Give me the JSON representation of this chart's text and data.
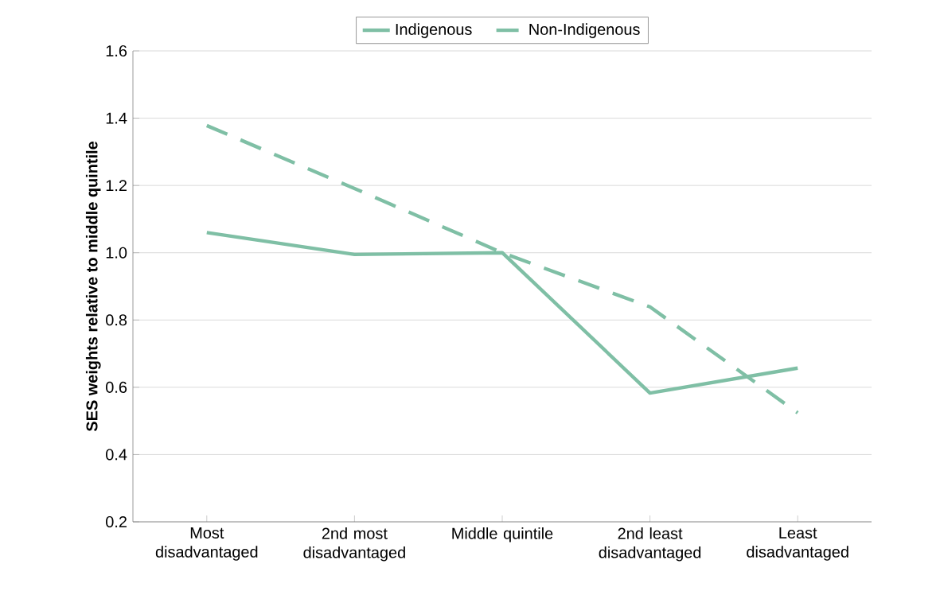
{
  "chart_data": {
    "type": "line",
    "ylabel": "SES weights relative to middle quintile",
    "categories": [
      "Most disadvantaged",
      "2nd most disadvantaged",
      "Middle quintile",
      "2nd least disadvantaged",
      "Least disadvantaged"
    ],
    "series": [
      {
        "name": "Indigenous",
        "color": "#7fbfa5",
        "line_style": "solid",
        "values": [
          1.06,
          0.995,
          1.0,
          0.583,
          0.657
        ]
      },
      {
        "name": "Non-Indigenous",
        "color": "#7fbfa5",
        "line_style": "dashed",
        "values": [
          1.378,
          1.191,
          1.0,
          0.839,
          0.524
        ]
      }
    ],
    "ylim": [
      0.2,
      1.6
    ],
    "yticks": [
      0.2,
      0.4,
      0.6,
      0.8,
      {
        "value": 1.0,
        "label": "1.0"
      },
      1.2,
      1.4,
      1.6
    ],
    "grid": "y",
    "legend": "top",
    "marker": "none"
  }
}
